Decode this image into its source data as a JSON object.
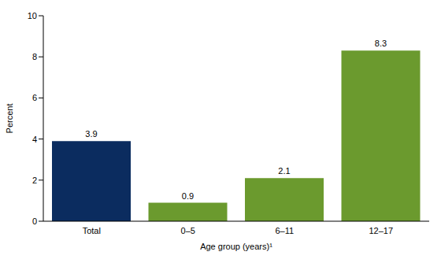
{
  "chart_data": {
    "type": "bar",
    "categories": [
      "Total",
      "0–5",
      "6–11",
      "12–17"
    ],
    "values": [
      3.9,
      0.9,
      2.1,
      8.3
    ],
    "colors": [
      "#0b2c5f",
      "#6b9a2e",
      "#6b9a2e",
      "#6b9a2e"
    ],
    "x_label": "Age group (years)¹",
    "y_label": "Percent",
    "ylim": [
      0,
      10
    ],
    "yticks": [
      0,
      2,
      4,
      6,
      8,
      10
    ],
    "grid": false,
    "data_labels": true
  }
}
